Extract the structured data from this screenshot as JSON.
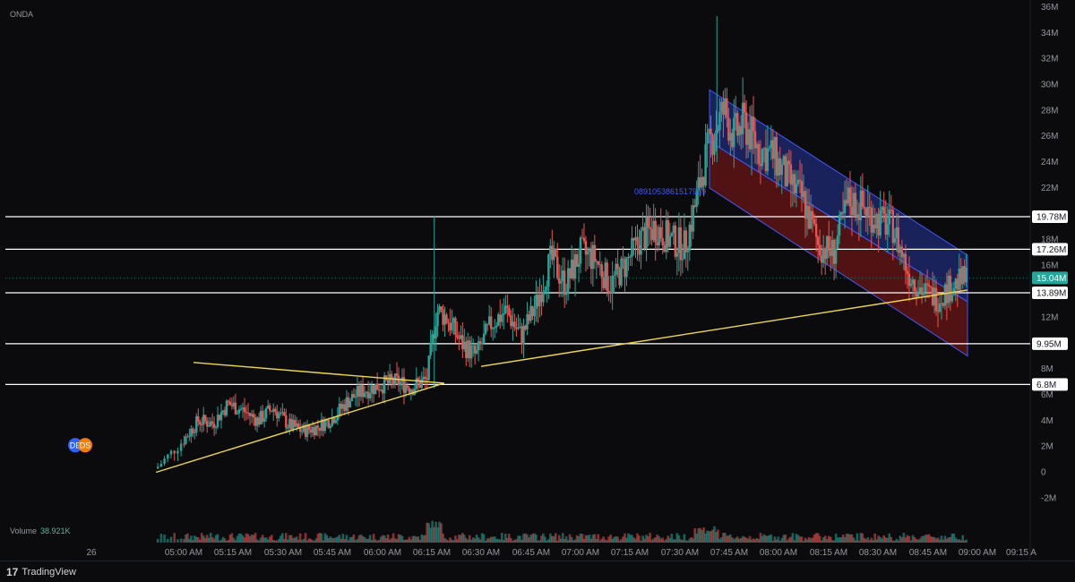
{
  "symbol": "ONDA",
  "volume_label": "Volume",
  "volume_value": "38.921K",
  "brand": "TradingView",
  "colors": {
    "up": "#26a69a",
    "down": "#ef5350",
    "trend": "#f0d84a",
    "level": "#ffffff",
    "channel_top": "#2b3eb8",
    "channel_bottom": "#8b1a1a",
    "price_tag": "#26a69a"
  },
  "badges": [
    "DE",
    "DS"
  ],
  "watermark_id": "0891053861517959",
  "chart_data": {
    "type": "candlestick",
    "x_ticks": [
      "26",
      "05:00 AM",
      "05:15 AM",
      "05:30 AM",
      "05:45 AM",
      "06:00 AM",
      "06:15 AM",
      "06:30 AM",
      "06:45 AM",
      "07:00 AM",
      "07:15 AM",
      "07:30 AM",
      "07:45 AM",
      "08:00 AM",
      "08:15 AM",
      "08:30 AM",
      "08:45 AM",
      "09:00 AM",
      "09:15 A"
    ],
    "y_ticks": [
      "36M",
      "34M",
      "32M",
      "30M",
      "28M",
      "26M",
      "24M",
      "22M",
      "18M",
      "16M",
      "12M",
      "10M",
      "8M",
      "6M",
      "4M",
      "2M",
      "0",
      "-2M"
    ],
    "y_tick_values": [
      36,
      34,
      32,
      30,
      28,
      26,
      24,
      22,
      18,
      16,
      12,
      10,
      8,
      6,
      4,
      2,
      0,
      -2
    ],
    "ylim": [
      -3.5,
      36.2
    ],
    "horizontal_levels": [
      {
        "label": "19.78M",
        "value": 19.78
      },
      {
        "label": "17.26M",
        "value": 17.26
      },
      {
        "label": "13.89M",
        "value": 13.89
      },
      {
        "label": "9.95M",
        "value": 9.95
      },
      {
        "label": "6.8M",
        "value": 6.8
      }
    ],
    "current_price": {
      "label": "15.04M",
      "value": 15.04
    },
    "trend_lines": [
      {
        "x1": 0.7,
        "y1": 0.0,
        "x2": 6.25,
        "y2": 6.9
      },
      {
        "x1": 1.2,
        "y1": 8.5,
        "x2": 6.25,
        "y2": 6.9
      },
      {
        "x1": 7.0,
        "y1": 8.2,
        "x2": 16.8,
        "y2": 14.1
      }
    ],
    "channel": {
      "x1": 11.6,
      "top1": 29.6,
      "mid1": 25.6,
      "bot1": 22.0,
      "x2": 16.8,
      "top2": 16.8,
      "mid2": 13.2,
      "bot2": 9.0
    }
  }
}
